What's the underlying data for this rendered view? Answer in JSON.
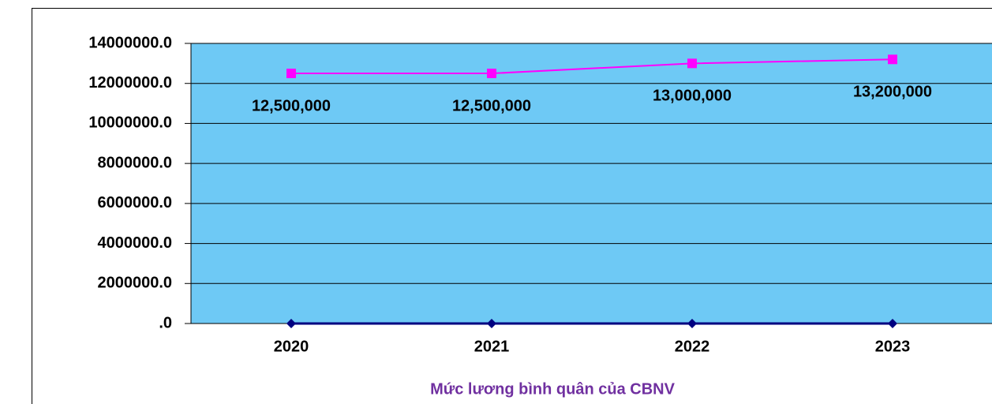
{
  "chart_data": {
    "type": "line",
    "categories": [
      "2020",
      "2021",
      "2022",
      "2023"
    ],
    "series": [
      {
        "color": "#ff00ff",
        "marker": "square",
        "values": [
          12500000,
          12500000,
          13000000,
          13200000
        ],
        "value_labels": [
          "12,500,000",
          "12,500,000",
          "13,000,000",
          "13,200,000"
        ]
      },
      {
        "color": "#000080",
        "marker": "diamond",
        "values": [
          0,
          0,
          0,
          0
        ]
      }
    ],
    "xlabel": "Mức lương bình quân của CBNV",
    "ylim": [
      0,
      14000000
    ],
    "yticks": [
      {
        "value": 0,
        "label": ".0"
      },
      {
        "value": 2000000,
        "label": "2000000.0"
      },
      {
        "value": 4000000,
        "label": "4000000.0"
      },
      {
        "value": 6000000,
        "label": "6000000.0"
      },
      {
        "value": 8000000,
        "label": "8000000.0"
      },
      {
        "value": 10000000,
        "label": "10000000.0"
      },
      {
        "value": 12000000,
        "label": "12000000.0"
      },
      {
        "value": 14000000,
        "label": "14000000.0"
      }
    ],
    "grid": true,
    "plot_background": "#6ec9f5"
  }
}
